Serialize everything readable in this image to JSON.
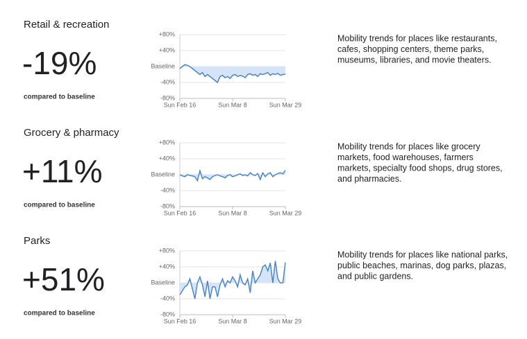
{
  "chart_data": [
    {
      "type": "line",
      "title": "Retail & recreation",
      "headline": "-19%",
      "caption": "compared to baseline",
      "description_lines": [
        "Mobility trends for places like restaurants,",
        "cafes, shopping centers, theme parks,",
        "museums, libraries, and movie theaters."
      ],
      "categories": [
        "Sun Feb 16",
        null,
        null,
        null,
        null,
        null,
        null,
        null,
        null,
        null,
        null,
        null,
        null,
        null,
        null,
        null,
        null,
        null,
        null,
        null,
        null,
        "Sun Mar 8",
        null,
        null,
        null,
        null,
        null,
        null,
        null,
        null,
        null,
        null,
        null,
        null,
        null,
        null,
        null,
        null,
        null,
        null,
        null,
        null,
        "Sun Mar 29"
      ],
      "series": [
        {
          "color": "#4a86c8",
          "values": [
            -5,
            0,
            5,
            3,
            0,
            -5,
            -10,
            -15,
            -20,
            -15,
            -25,
            -20,
            -25,
            -30,
            -35,
            -40,
            -25,
            -22,
            -28,
            -25,
            -30,
            -22,
            -20,
            -25,
            -22,
            -24,
            -28,
            -20,
            -18,
            -22,
            -20,
            -25,
            -18,
            -20,
            -18,
            -15,
            -22,
            -18,
            -20,
            -17,
            -22,
            -20,
            -19
          ]
        }
      ],
      "fill": "#d6e4f7",
      "ylim": [
        -80,
        80
      ],
      "yticks": [
        {
          "value": -80,
          "label": "-80%"
        },
        {
          "value": -40,
          "label": "-40%"
        },
        {
          "value": 0,
          "label": "Baseline"
        },
        {
          "value": 40,
          "label": "+40%"
        },
        {
          "value": 80,
          "label": "+80%"
        }
      ],
      "grid": true
    },
    {
      "type": "line",
      "title": "Grocery & pharmacy",
      "headline": "+11%",
      "caption": "compared to baseline",
      "description_lines": [
        "Mobility trends for places like grocery",
        "markets, food warehouses, farmers",
        "markets, specialty food shops, drug stores,",
        "and pharmacies."
      ],
      "categories": [
        "Sun Feb 16",
        null,
        null,
        null,
        null,
        null,
        null,
        null,
        null,
        null,
        null,
        null,
        null,
        null,
        null,
        null,
        null,
        null,
        null,
        null,
        null,
        "Sun Mar 8",
        null,
        null,
        null,
        null,
        null,
        null,
        null,
        null,
        null,
        null,
        null,
        null,
        null,
        null,
        null,
        null,
        null,
        null,
        null,
        null,
        "Sun Mar 29"
      ],
      "series": [
        {
          "color": "#4a86c8",
          "values": [
            0,
            -3,
            -5,
            0,
            -2,
            -3,
            -5,
            -15,
            10,
            -10,
            -5,
            -8,
            -12,
            -5,
            -2,
            0,
            -3,
            -5,
            -8,
            -2,
            0,
            -5,
            -3,
            0,
            2,
            -2,
            0,
            -3,
            5,
            0,
            -2,
            3,
            -12,
            5,
            -5,
            2,
            5,
            -5,
            0,
            3,
            5,
            2,
            11
          ]
        }
      ],
      "fill": "#d6e4f7",
      "ylim": [
        -80,
        80
      ],
      "yticks": [
        {
          "value": -80,
          "label": "-80%"
        },
        {
          "value": -40,
          "label": "-40%"
        },
        {
          "value": 0,
          "label": "Baseline"
        },
        {
          "value": 40,
          "label": "+40%"
        },
        {
          "value": 80,
          "label": "+80%"
        }
      ],
      "grid": true
    },
    {
      "type": "line",
      "title": "Parks",
      "headline": "+51%",
      "caption": "compared to baseline",
      "description_lines": [
        "Mobility trends for places like national parks,",
        "public beaches, marinas, dog parks, plazas,",
        "and public gardens."
      ],
      "categories": [
        "Sun Feb 16",
        null,
        null,
        null,
        null,
        null,
        null,
        null,
        null,
        null,
        null,
        null,
        null,
        null,
        null,
        null,
        null,
        null,
        null,
        null,
        null,
        "Sun Mar 8",
        null,
        null,
        null,
        null,
        null,
        null,
        null,
        null,
        null,
        null,
        null,
        null,
        null,
        null,
        null,
        null,
        null,
        null,
        null,
        null,
        "Sun Mar 29"
      ],
      "series": [
        {
          "color": "#4a86c8",
          "values": [
            -30,
            -20,
            -10,
            -5,
            10,
            -15,
            -40,
            0,
            15,
            -5,
            -35,
            5,
            -40,
            -10,
            -10,
            -35,
            -5,
            10,
            -10,
            5,
            0,
            15,
            5,
            -10,
            20,
            0,
            -5,
            10,
            -25,
            30,
            0,
            10,
            20,
            40,
            45,
            30,
            50,
            0,
            55,
            10,
            0,
            0,
            51
          ]
        }
      ],
      "fill": "#d6e4f7",
      "ylim": [
        -80,
        80
      ],
      "yticks": [
        {
          "value": -80,
          "label": "-80%"
        },
        {
          "value": -40,
          "label": "-40%"
        },
        {
          "value": 0,
          "label": "Baseline"
        },
        {
          "value": 40,
          "label": "+40%"
        },
        {
          "value": 80,
          "label": "+80%"
        }
      ],
      "grid": true
    }
  ]
}
